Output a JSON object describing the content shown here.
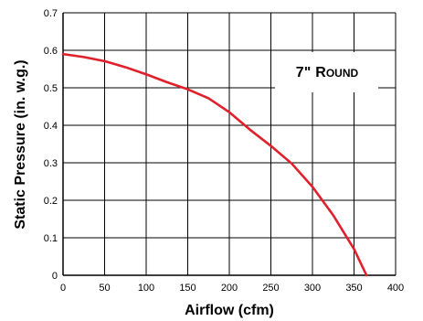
{
  "chart_data": {
    "type": "line",
    "title": "",
    "xlabel": "Airflow (cfm)",
    "ylabel": "Static Pressure (in. w.g.)",
    "xlim": [
      0,
      400
    ],
    "ylim": [
      0,
      0.7
    ],
    "x_ticks": [
      "0",
      "50",
      "100",
      "150",
      "200",
      "250",
      "300",
      "350",
      "400"
    ],
    "y_ticks": [
      "0",
      "0.1",
      "0.2",
      "0.3",
      "0.4",
      "0.5",
      "0.6",
      "0.7"
    ],
    "grid": true,
    "series_color": "#e0202a",
    "series": [
      {
        "x": [
          0,
          25,
          50,
          75,
          100,
          125,
          150,
          175,
          200,
          225,
          250,
          275,
          300,
          325,
          350,
          365
        ],
        "y": [
          0.59,
          0.582,
          0.571,
          0.555,
          0.536,
          0.515,
          0.496,
          0.472,
          0.435,
          0.388,
          0.345,
          0.298,
          0.236,
          0.16,
          0.07,
          0.0
        ]
      }
    ],
    "annotation": {
      "text_main": "7\"",
      "text_cap1": "R",
      "text_small": "OUND",
      "position": "top-right"
    }
  }
}
